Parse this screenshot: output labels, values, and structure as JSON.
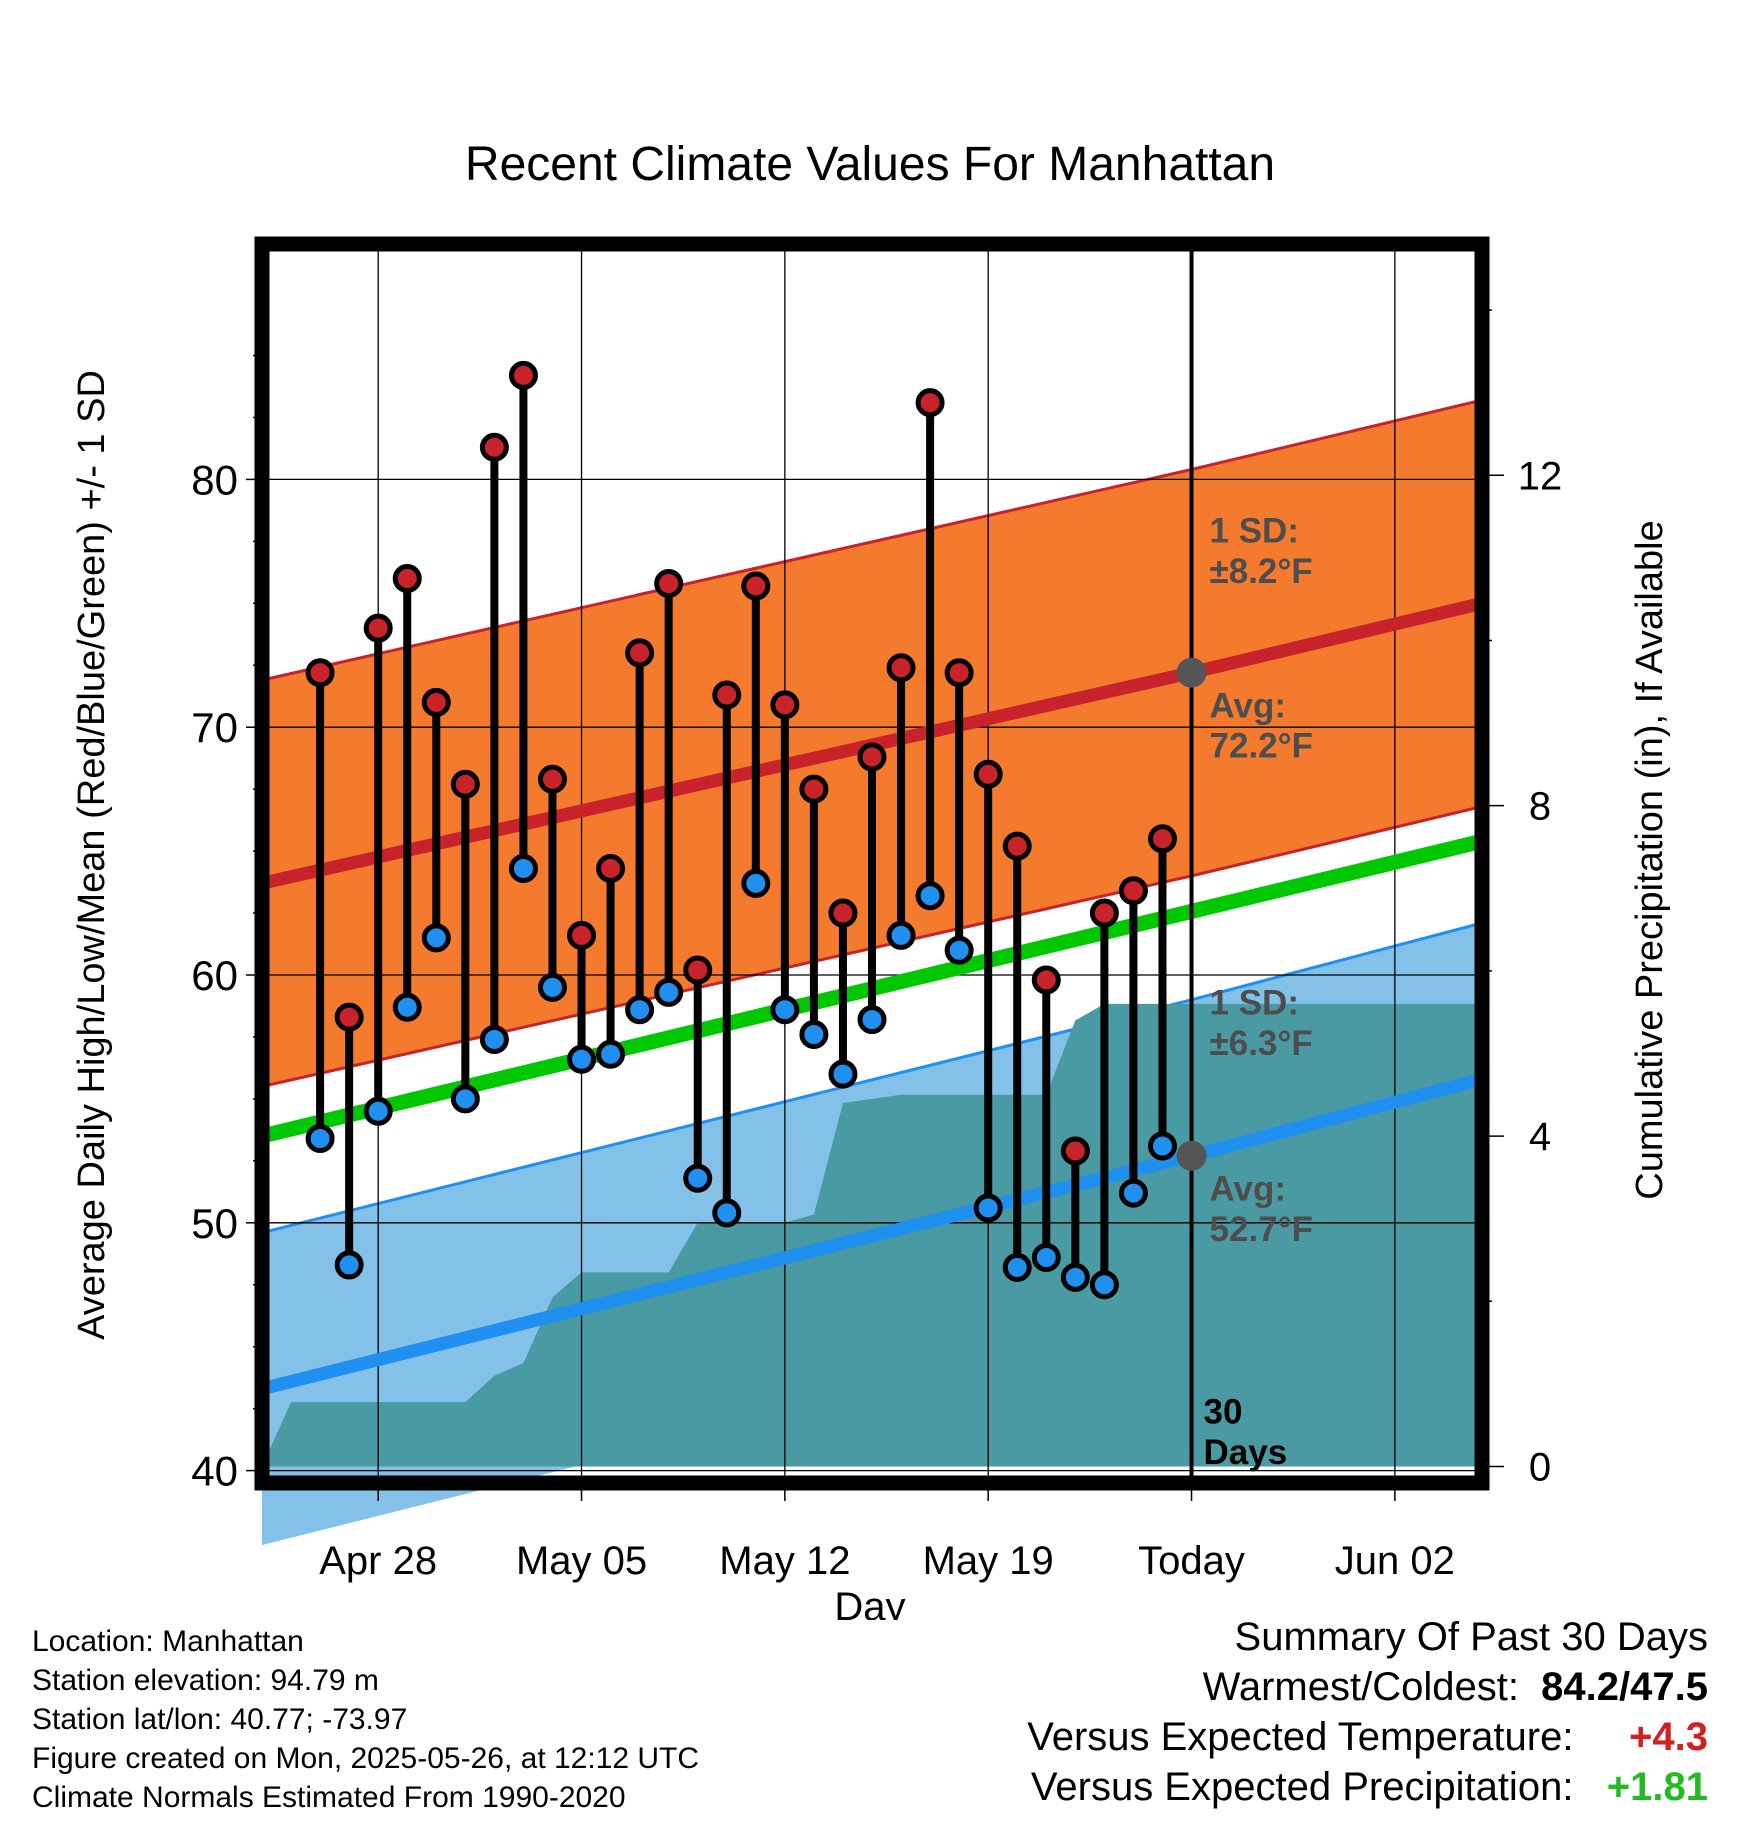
{
  "chart_data": {
    "type": "line",
    "title": "Recent Climate Values For Manhattan",
    "xlabel": "Day",
    "ylabel": "Average Daily High/Low/Mean (Red/Blue/Green) +/- 1 SD",
    "y2label": "Cumulative Precipitation (in), If Available",
    "ylim": [
      39.5,
      89.5
    ],
    "y2lim": [
      -0.2,
      14.8
    ],
    "xlim": [
      "2025-04-24",
      "2025-06-05"
    ],
    "yticks": [
      40,
      50,
      60,
      70,
      80
    ],
    "y2ticks": [
      0,
      4,
      8,
      12
    ],
    "xticks": [
      {
        "date": "2025-04-28",
        "label": "Apr 28"
      },
      {
        "date": "2025-05-05",
        "label": "May 05"
      },
      {
        "date": "2025-05-12",
        "label": "May 12"
      },
      {
        "date": "2025-05-19",
        "label": "May 19"
      },
      {
        "date": "2025-05-26",
        "label": "Today"
      },
      {
        "date": "2025-06-02",
        "label": "Jun 02"
      }
    ],
    "grid": true,
    "dates": [
      "2025-04-26",
      "2025-04-27",
      "2025-04-28",
      "2025-04-29",
      "2025-04-30",
      "2025-05-01",
      "2025-05-02",
      "2025-05-03",
      "2025-05-04",
      "2025-05-05",
      "2025-05-06",
      "2025-05-07",
      "2025-05-08",
      "2025-05-09",
      "2025-05-10",
      "2025-05-11",
      "2025-05-12",
      "2025-05-13",
      "2025-05-14",
      "2025-05-15",
      "2025-05-16",
      "2025-05-17",
      "2025-05-18",
      "2025-05-19",
      "2025-05-20",
      "2025-05-21",
      "2025-05-22",
      "2025-05-23",
      "2025-05-24",
      "2025-05-25"
    ],
    "daily_high": [
      72.2,
      58.3,
      74.0,
      76.0,
      71.0,
      67.7,
      81.3,
      84.2,
      67.9,
      61.6,
      64.3,
      73.0,
      75.8,
      60.2,
      71.3,
      75.7,
      70.9,
      67.5,
      62.5,
      68.8,
      72.4,
      83.1,
      72.2,
      68.1,
      65.2,
      59.8,
      52.9,
      62.5,
      63.4,
      65.5
    ],
    "daily_low": [
      53.4,
      48.3,
      54.5,
      58.7,
      61.5,
      55.0,
      57.4,
      64.3,
      59.5,
      56.6,
      56.8,
      58.6,
      59.3,
      51.8,
      50.4,
      63.7,
      58.6,
      57.6,
      56.0,
      58.2,
      61.6,
      63.2,
      61.0,
      50.6,
      48.2,
      48.6,
      47.8,
      47.5,
      51.2,
      53.1
    ],
    "normal_high": {
      "dates": [
        "2025-04-24",
        "2025-05-26",
        "2025-06-05"
      ],
      "values": [
        63.7,
        72.2,
        75.0
      ]
    },
    "normal_low": {
      "dates": [
        "2025-04-24",
        "2025-05-26",
        "2025-06-05"
      ],
      "values": [
        43.3,
        52.7,
        55.8
      ]
    },
    "normal_mean": {
      "dates": [
        "2025-04-24",
        "2025-06-05"
      ],
      "values": [
        53.5,
        65.4
      ]
    },
    "high_sd": 8.2,
    "low_sd": 6.3,
    "precip_cumulative": {
      "dates": [
        "2025-04-24",
        "2025-04-25",
        "2025-05-01",
        "2025-05-02",
        "2025-05-03",
        "2025-05-04",
        "2025-05-05",
        "2025-05-06",
        "2025-05-08",
        "2025-05-09",
        "2025-05-12",
        "2025-05-13",
        "2025-05-14",
        "2025-05-16",
        "2025-05-19",
        "2025-05-21",
        "2025-05-22",
        "2025-05-23",
        "2025-06-05"
      ],
      "values": [
        0.0,
        0.78,
        0.78,
        1.1,
        1.25,
        2.05,
        2.35,
        2.35,
        2.35,
        2.95,
        2.95,
        3.05,
        4.4,
        4.5,
        4.5,
        4.5,
        5.4,
        5.6,
        5.6
      ]
    },
    "colors": {
      "high": "#c8232b",
      "high_band": "#f47a2e",
      "low": "#1f8ff0",
      "low_band": "#83c1e8",
      "mean": "#00c800",
      "precip": "#4a9aa4",
      "high_marker": "#c8232b",
      "low_marker": "#1f8ff0",
      "today_marker": "#555555",
      "annotation": "#4d4d4d"
    },
    "annotations": {
      "high_sd_label": [
        "1 SD:",
        "±8.2°F"
      ],
      "high_avg_label": [
        "Avg:",
        "72.2°F"
      ],
      "low_sd_label": [
        "1 SD:",
        "±6.3°F"
      ],
      "low_avg_label": [
        "Avg:",
        "52.7°F"
      ],
      "days_label": [
        "30",
        "Days"
      ]
    }
  },
  "info": {
    "location": "Location: Manhattan",
    "elevation": "Station elevation: 94.79 m",
    "latlon": "Station lat/lon: 40.77; -73.97",
    "created": "Figure created on Mon, 2025-05-26, at 12:12 UTC",
    "normals": "Climate Normals Estimated From 1990-2020"
  },
  "summary": {
    "title": "Summary Of Past 30 Days",
    "warm_cold_label": "Warmest/Coldest:",
    "warm_cold_value": "84.2/47.5",
    "temp_label": "Versus Expected Temperature:",
    "temp_value": "+4.3",
    "temp_color": "#d02020",
    "precip_label": "Versus Expected Precipitation:",
    "precip_value": "+1.81",
    "precip_color": "#22bb22"
  }
}
